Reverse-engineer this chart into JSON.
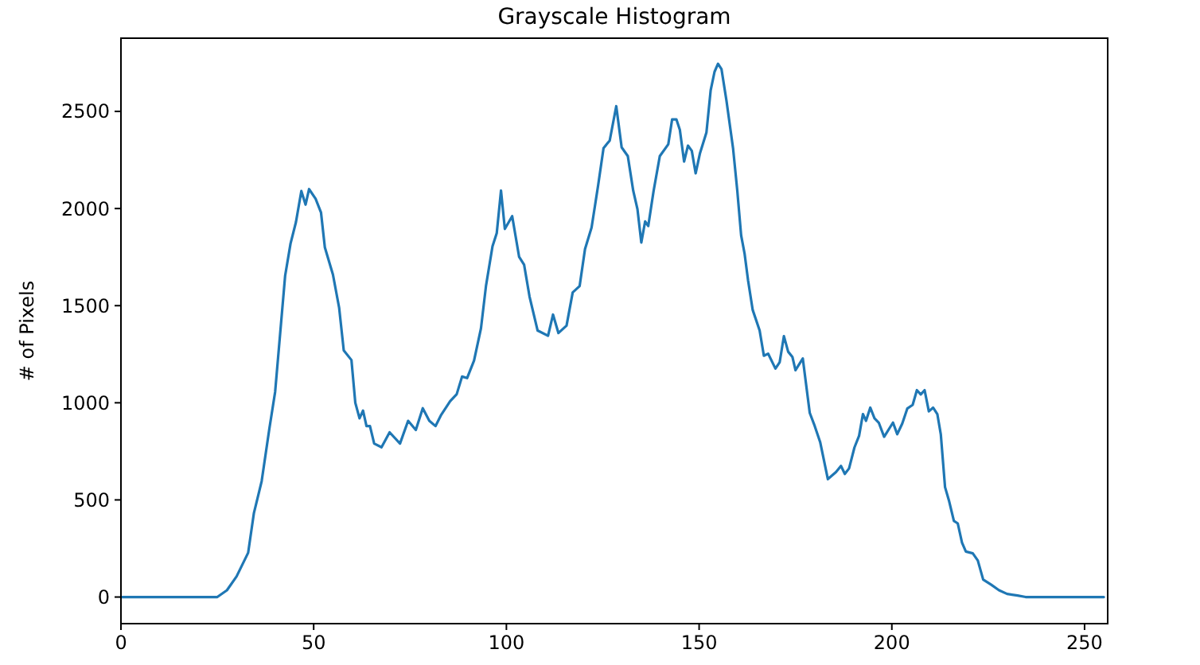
{
  "chart_data": {
    "type": "line",
    "title": "Grayscale Histogram",
    "ylabel": "# of Pixels",
    "xlim": [
      0,
      256
    ],
    "xticks": [
      0,
      50,
      100,
      150,
      200,
      250
    ],
    "ylim": [
      -137,
      2877
    ],
    "yticks": [
      0,
      500,
      1000,
      1500,
      2000,
      2500
    ],
    "marker": "none",
    "line_style": "solid",
    "series": [
      {
        "color": "#1f77b4",
        "x": [
          0,
          10,
          20,
          25,
          27.5,
          30,
          33,
          34.5,
          36.5,
          38.5,
          40,
          42.6,
          44,
          45.4,
          46.8,
          47.9,
          48.8,
          50.5,
          51.9,
          52.9,
          55,
          56.6,
          57.8,
          59.8,
          60.8,
          61.9,
          62.8,
          63.7,
          64.6,
          65.7,
          67.6,
          69.7,
          72.4,
          74.5,
          76.5,
          78.3,
          80,
          81.6,
          83,
          85.4,
          87.1,
          88.5,
          89.8,
          91.6,
          93.4,
          94.7,
          96.4,
          97.5,
          98.6,
          99.6,
          101.5,
          103.3,
          104.6,
          106,
          108.1,
          110.8,
          112.1,
          113.5,
          115.6,
          117.2,
          119,
          120.4,
          122.1,
          123.8,
          125.2,
          126.8,
          128.5,
          129.9,
          131.5,
          132.9,
          134,
          135,
          136,
          136.8,
          138.2,
          139.8,
          142,
          143,
          144.1,
          145,
          146.1,
          147.1,
          148.1,
          149.1,
          150.2,
          151.9,
          153,
          154,
          154.9,
          155.8,
          157.1,
          158.8,
          159.9,
          160.9,
          161.8,
          162.7,
          163.9,
          165.7,
          166.8,
          167.9,
          169.8,
          170.9,
          172,
          173.1,
          174.2,
          175,
          176.9,
          178.7,
          180,
          181.4,
          183.4,
          185.5,
          186.8,
          187.8,
          188.9,
          190.3,
          191.5,
          192.5,
          193.3,
          194.4,
          195.5,
          196.6,
          198,
          200.3,
          201.4,
          202.7,
          204,
          205.4,
          206.5,
          207.5,
          208.5,
          209.6,
          210.7,
          211.8,
          212.7,
          213.8,
          214.8,
          216.1,
          217.1,
          218.2,
          219.2,
          221,
          222.3,
          223.7,
          225.8,
          227.8,
          229.9,
          232.6,
          234.7,
          240,
          250,
          255
        ],
        "values": [
          0,
          0,
          0,
          0,
          35,
          106,
          228,
          433,
          596,
          866,
          1056,
          1655,
          1820,
          1930,
          2090,
          2020,
          2100,
          2050,
          1980,
          1800,
          1660,
          1490,
          1270,
          1220,
          1000,
          920,
          960,
          880,
          880,
          790,
          771,
          848,
          790,
          907,
          860,
          972,
          907,
          880,
          935,
          1008,
          1044,
          1135,
          1127,
          1217,
          1383,
          1601,
          1806,
          1874,
          2092,
          1895,
          1961,
          1751,
          1710,
          1547,
          1372,
          1345,
          1454,
          1359,
          1397,
          1568,
          1601,
          1792,
          1902,
          2119,
          2311,
          2350,
          2527,
          2315,
          2270,
          2092,
          1997,
          1825,
          1934,
          1910,
          2092,
          2270,
          2331,
          2459,
          2459,
          2405,
          2242,
          2324,
          2297,
          2181,
          2283,
          2392,
          2609,
          2704,
          2745,
          2718,
          2555,
          2311,
          2092,
          1862,
          1767,
          1630,
          1478,
          1372,
          1242,
          1253,
          1176,
          1209,
          1343,
          1263,
          1236,
          1168,
          1228,
          948,
          880,
          798,
          607,
          643,
          675,
          634,
          662,
          770,
          830,
          942,
          907,
          975,
          920,
          898,
          825,
          898,
          838,
          893,
          970,
          989,
          1065,
          1043,
          1065,
          956,
          975,
          942,
          838,
          566,
          498,
          392,
          379,
          280,
          234,
          225,
          188,
          90,
          63,
          35,
          16,
          8,
          0,
          0,
          0,
          0
        ]
      }
    ]
  }
}
